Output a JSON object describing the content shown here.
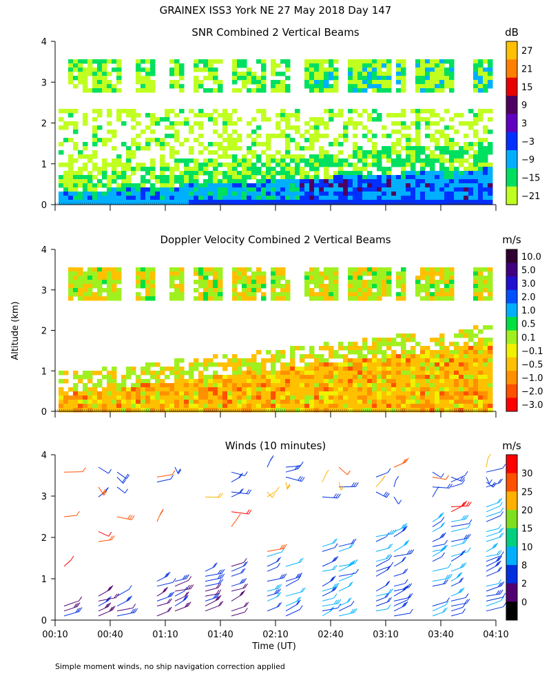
{
  "title": "GRAINEX ISS3 York NE  27 May 2018 Day 147",
  "ylabel": "Altitude (km)",
  "xlabel": "Time (UT)",
  "footnote": "Simple moment winds, no ship navigation correction applied",
  "chart_data": [
    {
      "type": "heatmap",
      "title": "SNR Combined 2 Vertical Beams",
      "ylim": [
        0,
        4
      ],
      "yticks": [
        "0",
        "1",
        "2",
        "3",
        "4"
      ],
      "colorbar": {
        "unit": "dB",
        "labels": [
          "27",
          "21",
          "15",
          "9",
          "3",
          "−3",
          "−9",
          "−15",
          "−21"
        ],
        "colors": [
          "#ffc000",
          "#ff8000",
          "#e80000",
          "#500060",
          "#6000c0",
          "#0030ff",
          "#00b0ff",
          "#00e060",
          "#c0ff20"
        ]
      }
    },
    {
      "type": "heatmap",
      "title": "Doppler Velocity Combined 2 Vertical Beams",
      "ylim": [
        0,
        4
      ],
      "yticks": [
        "0",
        "1",
        "2",
        "3",
        "4"
      ],
      "colorbar": {
        "unit": "m/s",
        "labels": [
          "10.0",
          "5.0",
          "3.0",
          "2.0",
          "1.0",
          "0.5",
          "0.1",
          "−0.1",
          "−0.5",
          "−1.0",
          "−2.0",
          "−3.0"
        ],
        "colors": [
          "#300030",
          "#400080",
          "#2010d0",
          "#0050ff",
          "#00b0ff",
          "#00e040",
          "#a0f020",
          "#f0f000",
          "#ffc000",
          "#ff9000",
          "#ff5000",
          "#ff0000"
        ]
      }
    },
    {
      "type": "scatter",
      "title": "Winds (10 minutes)",
      "ylim": [
        0,
        4
      ],
      "yticks": [
        "0",
        "1",
        "2",
        "3",
        "4"
      ],
      "colorbar": {
        "unit": "m/s",
        "labels": [
          "30",
          "25",
          "20",
          "15",
          "10",
          "8",
          "2",
          "0"
        ],
        "colors": [
          "#ff0000",
          "#ff5000",
          "#ffb000",
          "#80e020",
          "#00d080",
          "#00b0ff",
          "#0030e0",
          "#500070",
          "#000000"
        ]
      }
    }
  ],
  "xticks": [
    "00:10",
    "00:40",
    "01:10",
    "01:40",
    "02:10",
    "02:40",
    "03:10",
    "03:40",
    "04:10"
  ]
}
